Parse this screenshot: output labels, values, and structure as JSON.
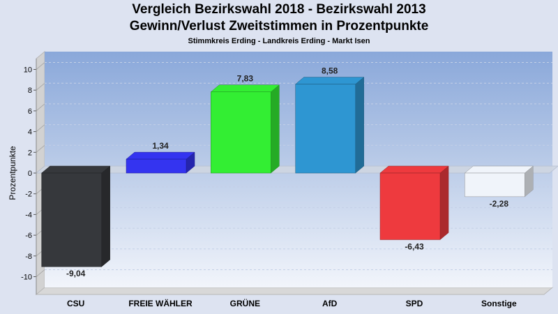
{
  "chart_data": {
    "type": "bar",
    "title": "Vergleich Bezirkswahl 2018 - Bezirkswahl 2013",
    "title2": "Gewinn/Verlust Zweitstimmen in Prozentpunkte",
    "subtitle": "Stimmkreis Erding - Landkreis Erding - Markt Isen",
    "ylabel": "Prozentpunkte",
    "xlabel": "",
    "ylim": [
      -11,
      11
    ],
    "yticks": [
      -10,
      -8,
      -6,
      -4,
      -2,
      0,
      2,
      4,
      6,
      8,
      10
    ],
    "grid": true,
    "categories": [
      "CSU",
      "FREIE WÄHLER",
      "GRÜNE",
      "AfD",
      "SPD",
      "Sonstige"
    ],
    "values": [
      -9.04,
      1.34,
      7.83,
      8.58,
      -6.43,
      -2.28
    ],
    "value_labels": [
      "-9,04",
      "1,34",
      "7,83",
      "8,58",
      "-6,43",
      "-2,28"
    ],
    "colors": [
      "#36383c",
      "#3434f0",
      "#33ee33",
      "#2e96d2",
      "#ee3a3e",
      "#f0f4fa"
    ]
  }
}
